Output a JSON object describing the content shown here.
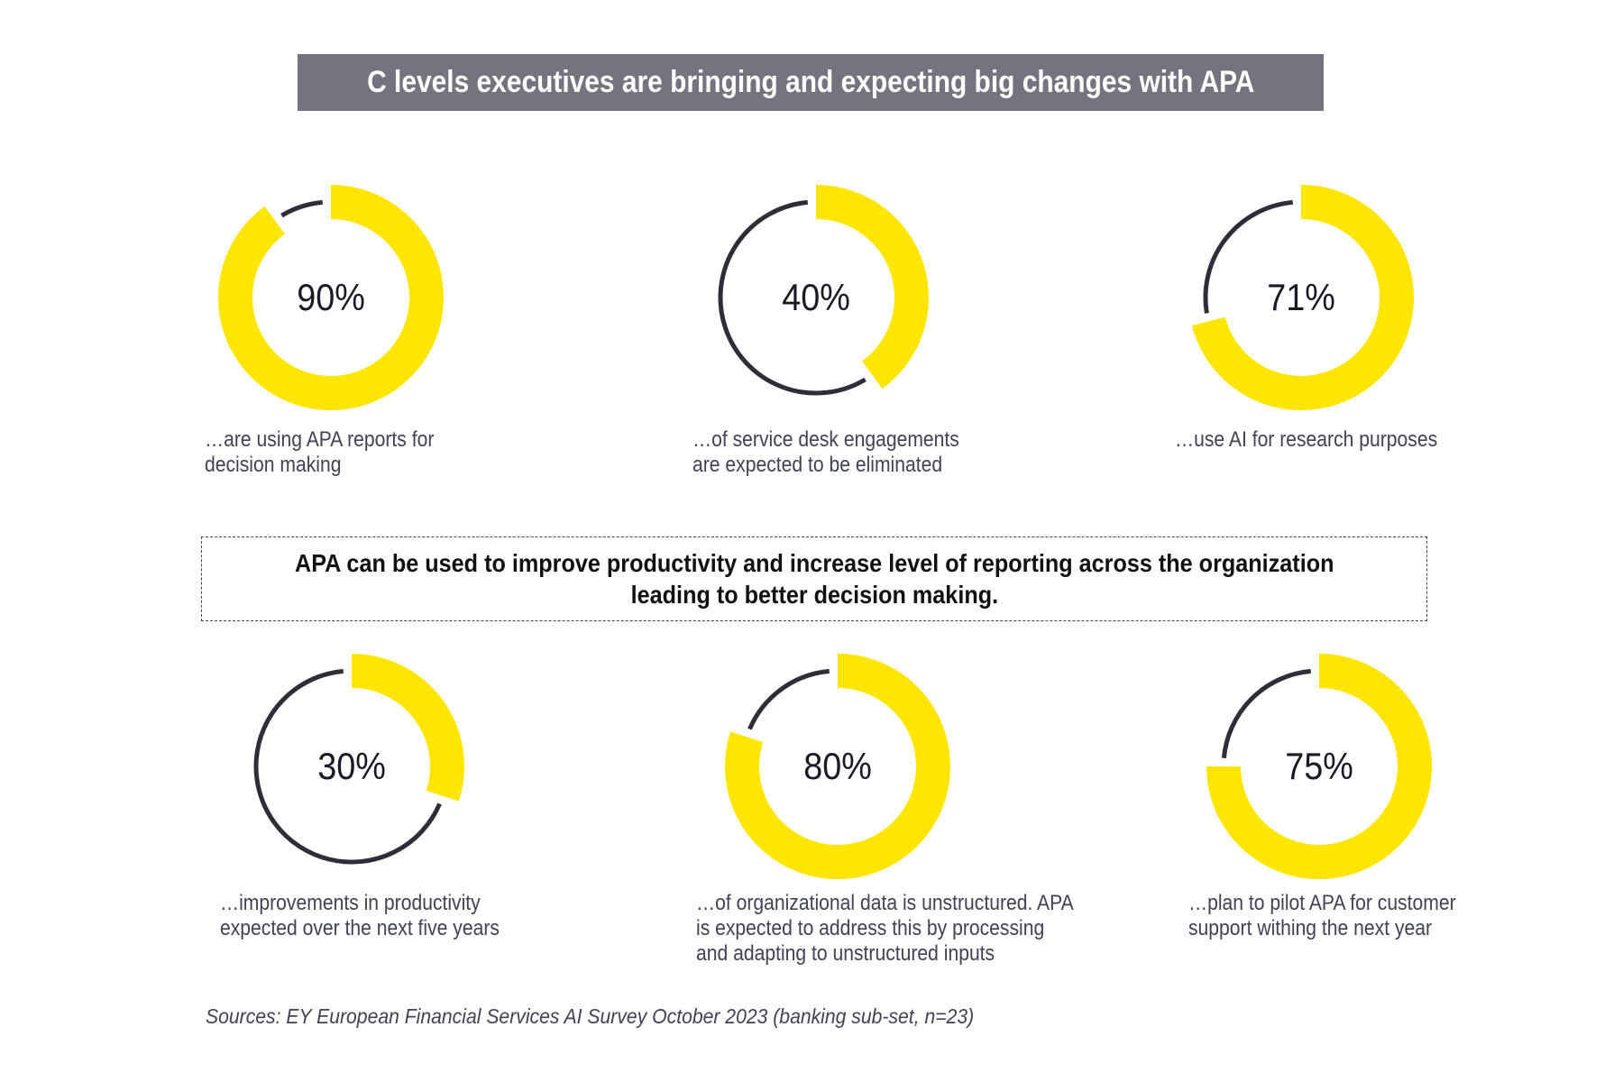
{
  "title": "C levels executives are bringing and expecting big changes with APA",
  "callout": {
    "line1": "APA can be used to improve productivity and increase level of reporting across the organization",
    "line2": "leading to better decision making."
  },
  "source": "Sources: EY European Financial Services AI Survey October 2023 (banking sub-set, n=23)",
  "colors": {
    "accent_yellow": "#FFE600",
    "ring_dark": "#2E2E38",
    "title_bar_bg": "#747480",
    "title_text": "#FFFFFF",
    "caption_text": "#404352",
    "percent_text": "#1A1A24"
  },
  "chart_data": {
    "type": "donut",
    "title": "C levels executives are bringing and expecting big changes with APA",
    "unit": "percent",
    "legend_position": "none",
    "donuts": [
      {
        "value": 90,
        "label": "90%",
        "caption": "…are using APA reports for decision making",
        "caption_lines": [
          "…are using APA reports for",
          "decision making"
        ]
      },
      {
        "value": 40,
        "label": "40%",
        "caption": "…of service desk engagements are expected to be eliminated",
        "caption_lines": [
          "…of service desk engagements",
          "are expected to be eliminated"
        ]
      },
      {
        "value": 71,
        "label": "71%",
        "caption": "…use AI for research purposes",
        "caption_lines": [
          "…use AI for research purposes"
        ]
      },
      {
        "value": 30,
        "label": "30%",
        "caption": "…improvements in productivity expected over the next five years",
        "caption_lines": [
          "…improvements in productivity",
          "expected over the next five years"
        ]
      },
      {
        "value": 80,
        "label": "80%",
        "caption": "…of organizational data is unstructured. APA is expected to address this by processing and adapting to unstructured inputs",
        "caption_lines": [
          "…of organizational data is unstructured. APA",
          "is expected to address this by processing",
          "and adapting to unstructured inputs"
        ]
      },
      {
        "value": 75,
        "label": "75%",
        "caption": "…plan to pilot APA for customer support withing the next year",
        "caption_lines": [
          "…plan to pilot APA for customer",
          "support withing the next year"
        ]
      }
    ]
  }
}
